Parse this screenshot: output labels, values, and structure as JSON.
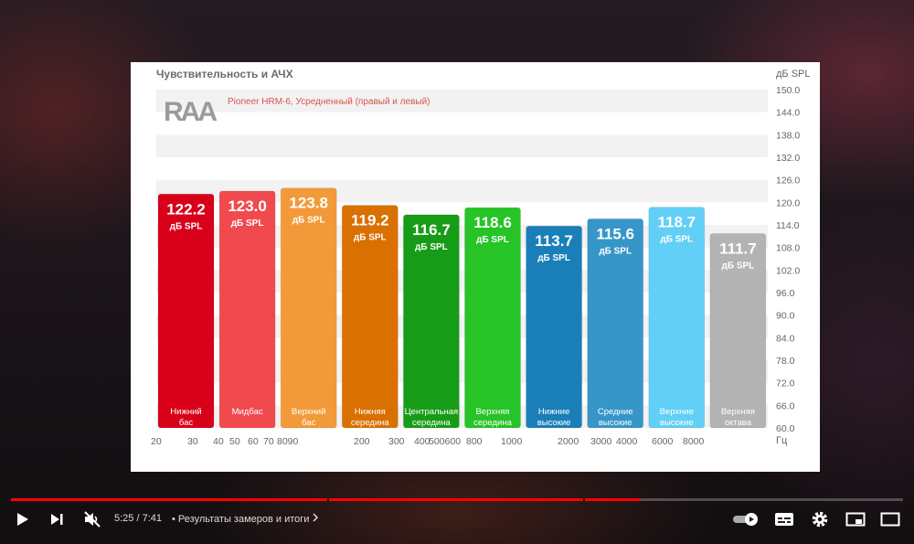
{
  "video": {
    "current_time": "5:25",
    "duration": "7:41",
    "separator": "/",
    "chapter_prefix": "•",
    "chapter_title": "Результаты замеров и итоги",
    "progress_fraction": 0.705
  },
  "slide": {
    "logo_text": "RAA",
    "subtitle": "Pioneer HRM-6, Усредненный (правый и левый)"
  },
  "icons": {
    "play": "play-icon",
    "next": "next-icon",
    "mute": "volume-muted-icon",
    "autoplay": "autoplay-toggle-icon",
    "subtitles": "subtitles-icon",
    "settings": "gear-icon",
    "miniplayer": "miniplayer-icon",
    "fullscreen": "fullscreen-icon"
  },
  "colors": {
    "progress": "#ff0000"
  },
  "chart_data": {
    "type": "bar",
    "title": "Чувствительность и АЧХ",
    "ylabel": "дБ SPL",
    "xlabel": "Гц",
    "ylim": [
      60.0,
      150.0
    ],
    "y_ticks": [
      "150.0",
      "144.0",
      "138.0",
      "132.0",
      "126.0",
      "120.0",
      "114.0",
      "108.0",
      "102.0",
      "96.0",
      "90.0",
      "84.0",
      "78.0",
      "72.0",
      "66.0",
      "60.0"
    ],
    "x_ticks": [
      "20",
      "30",
      "40",
      "50",
      "60",
      "70",
      "8090",
      "200",
      "300",
      "400",
      "500600",
      "800",
      "1000",
      "2000",
      "3000",
      "4000",
      "6000",
      "8000"
    ],
    "value_unit": "дБ SPL",
    "bars": [
      {
        "category": "Нижний бас",
        "value": 122.2,
        "value_text": "122.2",
        "color": "#d9001a"
      },
      {
        "category": "Мидбас",
        "value": 123.0,
        "value_text": "123.0",
        "color": "#f04a4f"
      },
      {
        "category": "Верхний бас",
        "value": 123.8,
        "value_text": "123.8",
        "color": "#f29a3a"
      },
      {
        "category": "Нижняя середина",
        "value": 119.2,
        "value_text": "119.2",
        "color": "#d97000"
      },
      {
        "category": "Центральная середина",
        "value": 116.7,
        "value_text": "116.7",
        "color": "#179c17"
      },
      {
        "category": "Верхняя середина",
        "value": 118.6,
        "value_text": "118.6",
        "color": "#26c426"
      },
      {
        "category": "Нижние высокие",
        "value": 113.7,
        "value_text": "113.7",
        "color": "#1a7fb8"
      },
      {
        "category": "Средние высокие",
        "value": 115.6,
        "value_text": "115.6",
        "color": "#3796c8"
      },
      {
        "category": "Верхние высокие",
        "value": 118.7,
        "value_text": "118.7",
        "color": "#62cff7"
      },
      {
        "category": "Верхняя октава",
        "value": 111.7,
        "value_text": "111.7",
        "color": "#b3b3b3"
      }
    ],
    "grid": true
  }
}
